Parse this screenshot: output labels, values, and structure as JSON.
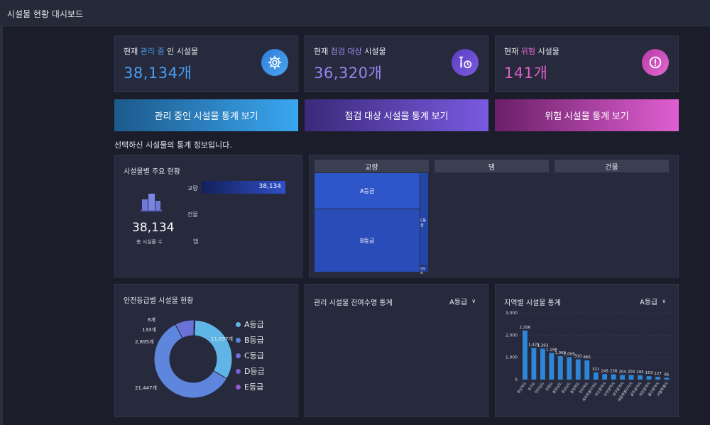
{
  "header": {
    "title": "시설물 현황 대시보드"
  },
  "stats": [
    {
      "pre": "현재 ",
      "highlight": "관리 중",
      "post": " 인 시설물",
      "value": "38,134개",
      "color": "#4a9ef2",
      "icon": "gear-icon"
    },
    {
      "pre": "현재 ",
      "highlight": "점검 대상",
      "post": " 시설물",
      "value": "36,320개",
      "color": "#8a72e6",
      "icon": "wrench-clock-icon"
    },
    {
      "pre": "현재 ",
      "highlight": "위험",
      "post": " 시설물",
      "value": "141개",
      "color": "#e05fc8",
      "icon": "alert-icon"
    }
  ],
  "buttons": {
    "managed": "관리 중인 시설물 통계 보기",
    "inspection": "점검 대상 시설물 통계 보기",
    "danger": "위험 시설물 통계 보기"
  },
  "caption": "선택하신 시설물의 통계 정보입니다.",
  "type_panel": {
    "title": "시설물별 주요 현황",
    "total": "38,134",
    "total_label": "총 시설물 수",
    "rows": [
      {
        "label": "교량",
        "value": "38,134",
        "fraction": 1.0
      },
      {
        "label": "건물",
        "value": "",
        "fraction": 0
      },
      {
        "label": "댐",
        "value": "",
        "fraction": 0
      }
    ]
  },
  "treemap": {
    "headers": [
      "교량",
      "댐",
      "건물"
    ],
    "blocks": [
      {
        "label": "A등급"
      },
      {
        "label": "B등급"
      },
      {
        "label": "C등급"
      },
      {
        "label": "미부여"
      }
    ]
  },
  "grade_panel": {
    "title": "안전등급별 시설물 현황",
    "legend": [
      {
        "label": "A등급",
        "color": "#5fb6e6"
      },
      {
        "label": "B등급",
        "color": "#5d86dc"
      },
      {
        "label": "C등급",
        "color": "#6a72d8"
      },
      {
        "label": "D등급",
        "color": "#7a5cd6"
      },
      {
        "label": "E등급",
        "color": "#9258d2"
      }
    ],
    "slice_labels": [
      "11,837개",
      "21,447개",
      "2,895개",
      "133개",
      "8개"
    ]
  },
  "lifespan_panel": {
    "title": "관리 시설물 잔여수명 통계",
    "filter": "A등급"
  },
  "region_panel": {
    "title": "지역별 시설물 통계",
    "filter": "A등급"
  },
  "chart_data": [
    {
      "type": "pie",
      "title": "안전등급별 시설물 현황",
      "categories": [
        "A등급",
        "B등급",
        "C등급",
        "D등급",
        "E등급"
      ],
      "values": [
        11837,
        21447,
        2895,
        133,
        8
      ]
    },
    {
      "type": "bar",
      "title": "지역별 시설물 통계",
      "categories": [
        "경상북도",
        "경기도",
        "전라남도",
        "강원도",
        "충청남도",
        "경상남도",
        "충청북도",
        "전라북도",
        "제주특별자치도",
        "부산광역시",
        "인천광역시",
        "대구광역시",
        "세종특별자치시",
        "광주광역시",
        "대전광역시",
        "울산광역시",
        "서울특별시"
      ],
      "values": [
        2206,
        1423,
        1393,
        1198,
        1060,
        1009,
        910,
        865,
        321,
        245,
        236,
        204,
        204,
        195,
        153,
        127,
        85
      ],
      "value_labels": [
        "2,206",
        "1,423",
        "1,393",
        "1,198",
        "1,060",
        "1,009",
        "910",
        "865",
        "321",
        "245",
        "236",
        "204",
        "204",
        "195",
        "153",
        "127",
        "85"
      ],
      "yticks": [
        "0",
        "1,000",
        "2,000",
        "3,000"
      ],
      "ylim": [
        0,
        3000
      ]
    }
  ]
}
